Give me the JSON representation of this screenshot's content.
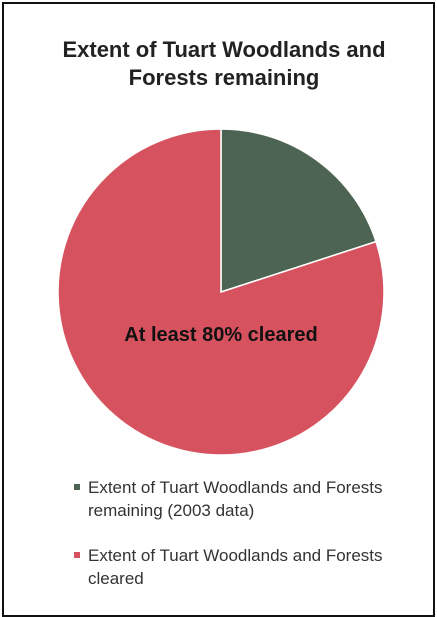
{
  "chart_data": {
    "type": "pie",
    "title": "Extent of Tuart Woodlands and Forests remaining",
    "categories": [
      "Extent of Tuart Woodlands and Forests remaining (2003 data)",
      "Extent of Tuart Woodlands and Forests cleared"
    ],
    "values": [
      20,
      80
    ],
    "colors": [
      "#4d6452",
      "#d7525f"
    ],
    "annotation": "At least 80% cleared"
  }
}
